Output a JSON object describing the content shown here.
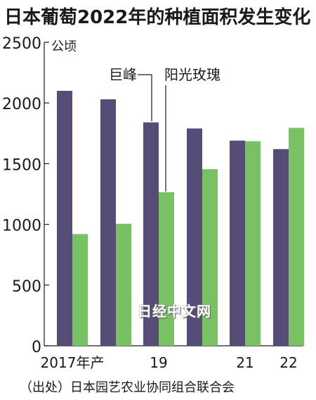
{
  "title": "日本葡萄2022年的种植面积发生变化",
  "source": "（出处）日本园艺农业协同组合联合会",
  "watermark": "日经中文网",
  "colors": {
    "kyoho": "#564c78",
    "shine_muscat": "#78c264"
  },
  "chart_data": {
    "type": "bar",
    "title": "日本葡萄2022年的种植面积发生变化",
    "unit": "公顷",
    "ylim": [
      0,
      2500
    ],
    "yticks": [
      "0",
      "500",
      "1000",
      "1500",
      "2000",
      "2500"
    ],
    "categories": [
      "2017年产",
      "",
      "19",
      "",
      "21",
      "22"
    ],
    "series": [
      {
        "name": "巨峰",
        "values": [
          2100,
          2030,
          1840,
          1790,
          1690,
          1620
        ]
      },
      {
        "name": "阳光玫瑰",
        "values": [
          920,
          1005,
          1265,
          1455,
          1685,
          1795
        ]
      }
    ],
    "grid": false,
    "legend": "callout labels with leader lines"
  }
}
